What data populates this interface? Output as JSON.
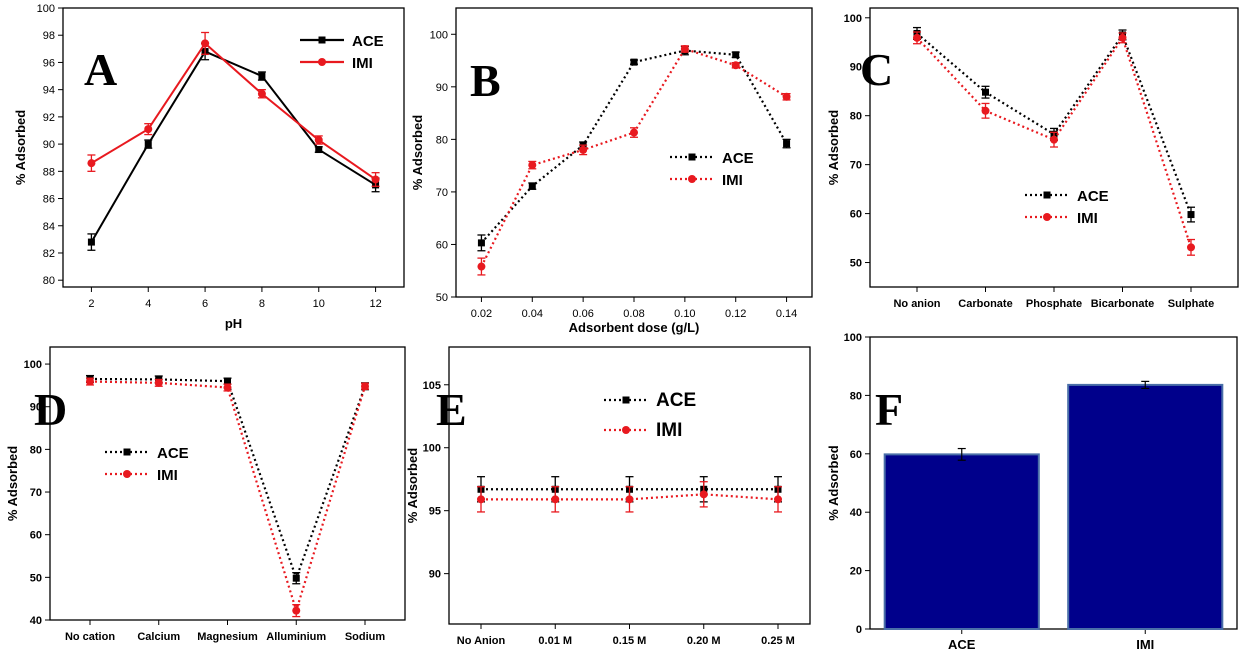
{
  "colors": {
    "ace": "#000000",
    "imi": "#e8191f",
    "bar_fill": "#00008b",
    "bar_edge": "#4a6fa8"
  },
  "chart_data": [
    {
      "panel": "A",
      "type": "line",
      "ylabel": "% Adsorbed",
      "xlabel": "pH",
      "x": [
        2,
        4,
        6,
        8,
        10,
        12
      ],
      "xlim": [
        1,
        13
      ],
      "ylim": [
        79.5,
        100
      ],
      "xticks": [
        "2",
        "4",
        "6",
        "8",
        "10",
        "12"
      ],
      "yticks": [
        80,
        82,
        84,
        86,
        88,
        90,
        92,
        94,
        96,
        98,
        100
      ],
      "legend_position": "top-right",
      "series": [
        {
          "name": "ACE",
          "values": [
            82.8,
            90.0,
            96.8,
            95.0,
            89.6,
            87.0
          ],
          "errors": [
            0.6,
            0.3,
            0.6,
            0.3,
            0.2,
            0.5
          ]
        },
        {
          "name": "IMI",
          "values": [
            88.6,
            91.1,
            97.4,
            93.7,
            90.3,
            87.4
          ],
          "errors": [
            0.6,
            0.4,
            0.8,
            0.3,
            0.3,
            0.5
          ]
        }
      ]
    },
    {
      "panel": "B",
      "type": "line",
      "ylabel": "% Adsorbed",
      "xlabel": "Adsorbent dose (g/L)",
      "x": [
        0.02,
        0.04,
        0.06,
        0.08,
        0.1,
        0.12,
        0.14
      ],
      "xlim": [
        0.01,
        0.15
      ],
      "ylim": [
        50,
        105
      ],
      "xticks": [
        "0.02",
        "0.04",
        "0.06",
        "0.08",
        "0.10",
        "0.12",
        "0.14"
      ],
      "yticks": [
        50,
        60,
        70,
        80,
        90,
        100
      ],
      "legend_position": "center-right",
      "series": [
        {
          "name": "ACE",
          "values": [
            60.3,
            71.1,
            78.9,
            94.7,
            96.9,
            96.1,
            79.2
          ],
          "errors": [
            1.5,
            0.6,
            0.6,
            0.4,
            0.8,
            0.5,
            0.8
          ]
        },
        {
          "name": "IMI",
          "values": [
            55.8,
            75.1,
            78.0,
            81.3,
            97.2,
            94.1,
            88.1
          ],
          "errors": [
            1.6,
            0.7,
            0.9,
            0.9,
            0.6,
            0.5,
            0.6
          ]
        }
      ]
    },
    {
      "panel": "C",
      "type": "line",
      "ylabel": "% Adsorbed",
      "xlabel": "",
      "categories": [
        "No anion",
        "Carbonate",
        "Phosphate",
        "Bicarbonate",
        "Sulphate"
      ],
      "ylim": [
        45,
        102
      ],
      "yticks": [
        50,
        60,
        70,
        80,
        90,
        100
      ],
      "legend_position": "center",
      "series": [
        {
          "name": "ACE",
          "values": [
            96.8,
            84.8,
            76.2,
            96.5,
            59.8
          ],
          "errors": [
            1.2,
            1.2,
            1.2,
            1.0,
            1.5
          ]
        },
        {
          "name": "IMI",
          "values": [
            95.9,
            81.0,
            75.1,
            95.9,
            53.1
          ],
          "errors": [
            1.2,
            1.5,
            1.5,
            1.0,
            1.6
          ]
        }
      ]
    },
    {
      "panel": "D",
      "type": "line",
      "ylabel": "% Adsorbed",
      "xlabel": "",
      "categories": [
        "No cation",
        "Calcium",
        "Magnesium",
        "Alluminium",
        "Sodium"
      ],
      "ylim": [
        40,
        104
      ],
      "yticks": [
        40,
        50,
        60,
        70,
        80,
        90,
        100
      ],
      "legend_position": "center-left",
      "series": [
        {
          "name": "ACE",
          "values": [
            96.5,
            96.4,
            96.0,
            49.8,
            94.8
          ],
          "errors": [
            0.8,
            0.8,
            0.7,
            1.3,
            0.8
          ]
        },
        {
          "name": "IMI",
          "values": [
            95.9,
            95.6,
            94.5,
            42.2,
            94.8
          ],
          "errors": [
            0.8,
            0.8,
            0.8,
            1.4,
            0.7
          ]
        }
      ]
    },
    {
      "panel": "E",
      "type": "line",
      "ylabel": "% Adsorbed",
      "xlabel": "",
      "categories": [
        "No Anion",
        "0.01 M",
        "0.15 M",
        "0.20 M",
        "0.25 M"
      ],
      "ylim": [
        86,
        108
      ],
      "yticks": [
        90,
        95,
        100,
        105
      ],
      "legend_position": "top",
      "series": [
        {
          "name": "ACE",
          "values": [
            96.7,
            96.7,
            96.7,
            96.7,
            96.7
          ],
          "errors": [
            1.0,
            1.0,
            1.0,
            1.0,
            1.0
          ]
        },
        {
          "name": "IMI",
          "values": [
            95.9,
            95.9,
            95.9,
            96.3,
            95.9
          ],
          "errors": [
            1.0,
            1.0,
            1.0,
            1.0,
            1.0
          ]
        }
      ]
    },
    {
      "panel": "F",
      "type": "bar",
      "ylabel": "% Adsorbed",
      "xlabel": "",
      "categories": [
        "ACE",
        "IMI"
      ],
      "values": [
        59.8,
        83.6
      ],
      "errors": [
        2.0,
        1.2
      ],
      "ylim": [
        0,
        100
      ],
      "yticks": [
        0,
        20,
        40,
        60,
        80,
        100
      ]
    }
  ]
}
